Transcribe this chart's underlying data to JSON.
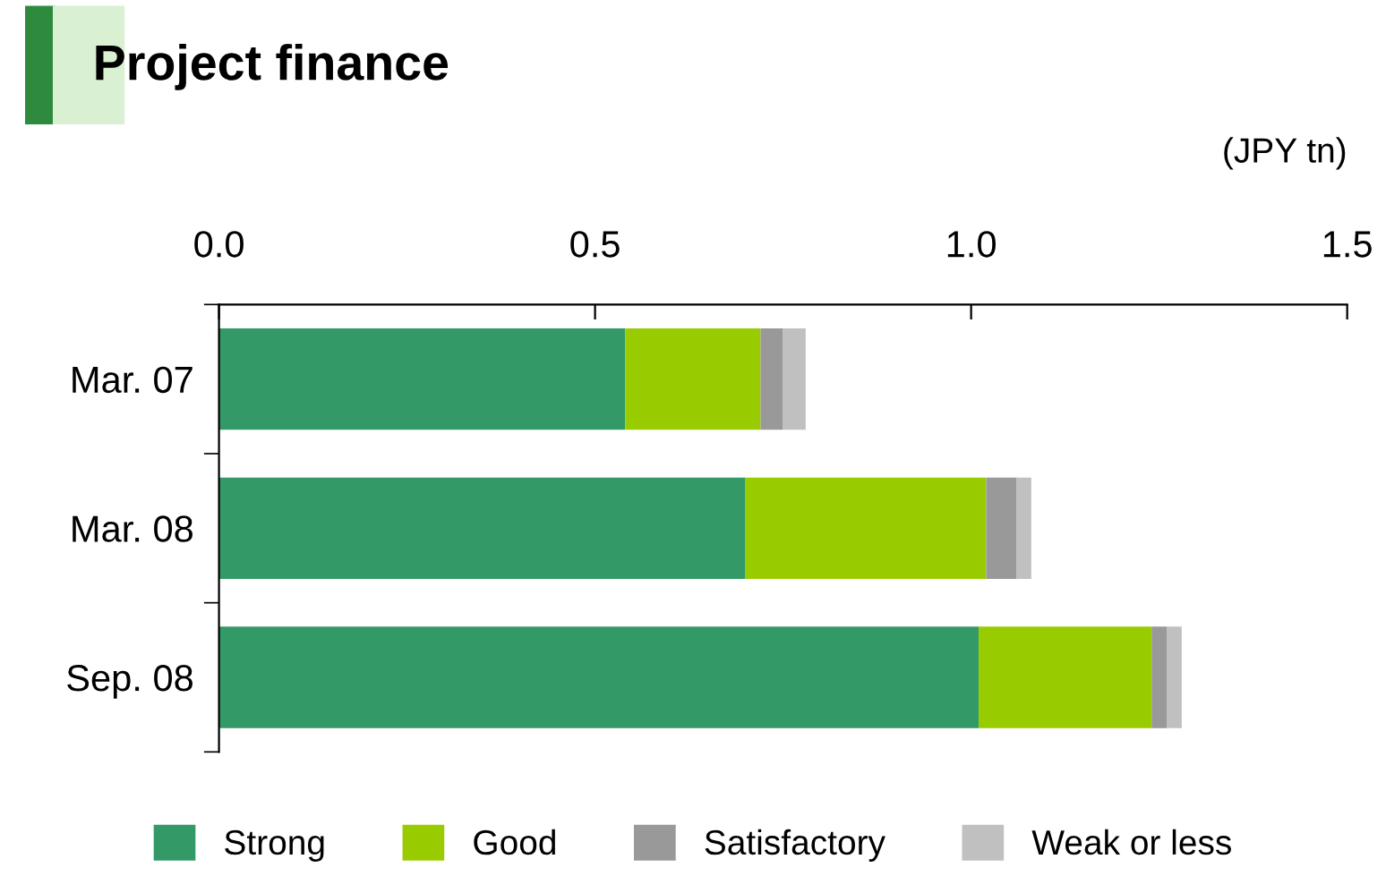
{
  "chart_data": {
    "type": "bar",
    "orientation": "horizontal",
    "stacked": true,
    "title": "Project finance",
    "xlabel": "(JPY tn)",
    "categories": [
      "Mar. 07",
      "Mar. 08",
      "Sep. 08"
    ],
    "series": [
      {
        "name": "Strong",
        "color": "#339966",
        "values": [
          0.54,
          0.7,
          1.01
        ]
      },
      {
        "name": "Good",
        "color": "#99cc00",
        "values": [
          0.18,
          0.32,
          0.23
        ]
      },
      {
        "name": "Satisfactory",
        "color": "#999999",
        "values": [
          0.03,
          0.04,
          0.02
        ]
      },
      {
        "name": "Weak or less",
        "color": "#c0c0c0",
        "values": [
          0.03,
          0.02,
          0.02
        ]
      }
    ],
    "xlim": [
      0,
      1.5
    ],
    "xticks": [
      {
        "value": 0,
        "label": "0.0"
      },
      0.5,
      {
        "value": 1,
        "label": "1.0"
      },
      1.5
    ],
    "grid": false,
    "legend": "bottom"
  }
}
